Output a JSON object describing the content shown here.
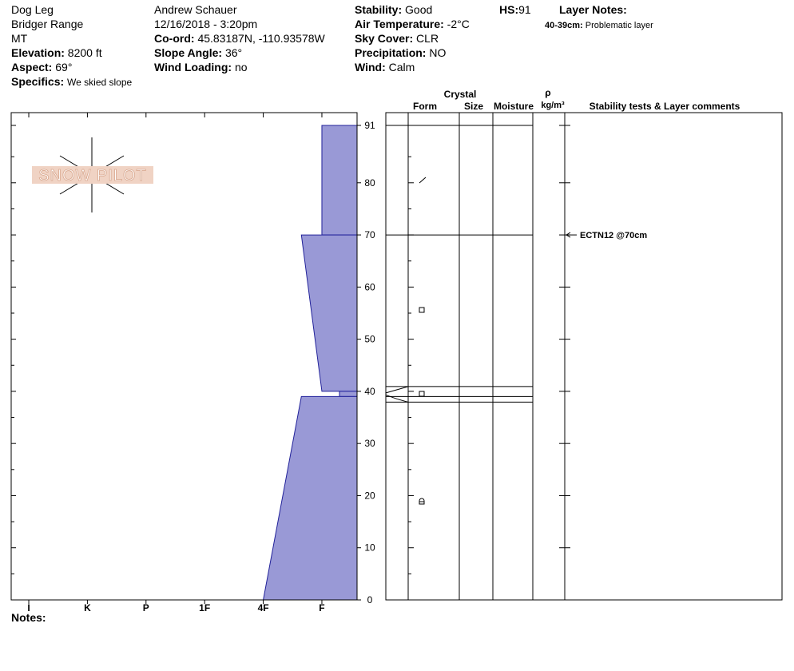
{
  "header": {
    "site": "Dog Leg",
    "range": "Bridger Range",
    "state": "MT",
    "elevation": {
      "label": "Elevation:",
      "value": "8200 ft"
    },
    "aspect": {
      "label": "Aspect:",
      "value": "69°"
    },
    "specifics": {
      "label": "Specifics:",
      "value": "We skied slope"
    },
    "observer": "Andrew Schauer",
    "datetime": "12/16/2018 - 3:20pm",
    "coord": {
      "label": "Co-ord:",
      "value": "45.83187N, -110.93578W"
    },
    "slope_angle": {
      "label": "Slope Angle:",
      "value": "36°"
    },
    "wind_loading": {
      "label": "Wind Loading:",
      "value": "no"
    },
    "stability": {
      "label": "Stability:",
      "value": "Good"
    },
    "air_temperature": {
      "label": "Air Temperature:",
      "value": "-2°C"
    },
    "sky_cover": {
      "label": "Sky Cover:",
      "value": "CLR"
    },
    "precipitation": {
      "label": "Precipitation:",
      "value": "NO"
    },
    "wind": {
      "label": "Wind:",
      "value": "Calm"
    },
    "hs": {
      "label": "HS:",
      "value": "91"
    },
    "layer_notes": {
      "label": "Layer Notes:",
      "items": [
        {
          "range": "40-39cm:",
          "text": "Problematic layer"
        }
      ]
    }
  },
  "logo": "SNOW PILOT",
  "profile": {
    "depth_lim": [
      0,
      91
    ],
    "depth_ticks": [
      0,
      10,
      20,
      30,
      40,
      50,
      60,
      70,
      80,
      91
    ],
    "minor_ticks": [
      5,
      15,
      25,
      35,
      45,
      55,
      65,
      75,
      85
    ],
    "hardness_lim": [
      6.3,
      0.4
    ],
    "hardness_ticks": [
      {
        "value": 6,
        "label": "I"
      },
      {
        "value": 5,
        "label": "K"
      },
      {
        "value": 4,
        "label": "P"
      },
      {
        "value": 3,
        "label": "1F"
      },
      {
        "value": 2,
        "label": "4F"
      },
      {
        "value": 1,
        "label": "F"
      }
    ],
    "layers": [
      {
        "top": 91,
        "bottom": 70,
        "hardness_top": 1,
        "hardness_bottom": 1
      },
      {
        "top": 70,
        "bottom": 40,
        "hardness_top": 1.35,
        "hardness_bottom": 1
      },
      {
        "top": 40,
        "bottom": 39,
        "hardness_top": 0.7,
        "hardness_bottom": 0.7
      },
      {
        "top": 39,
        "bottom": 0,
        "hardness_top": 1.35,
        "hardness_bottom": 2
      }
    ],
    "color": "#9999d6"
  },
  "columns": {
    "crystal": "Crystal",
    "form": "Form",
    "size": "Size",
    "moisture": "Moisture",
    "rho": "ρ",
    "density_unit": "kg/m³",
    "comments": "Stability tests & Layer comments"
  },
  "tests": [
    {
      "depth": 70,
      "text": "ECTN12 @70cm"
    }
  ],
  "notes": "Notes:"
}
